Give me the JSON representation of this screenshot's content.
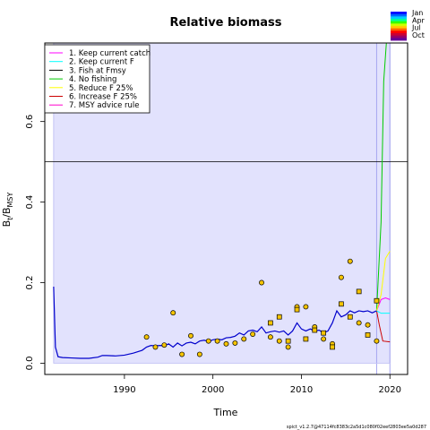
{
  "chart_data": {
    "type": "line",
    "title": "Relative biomass",
    "xlabel": "Time",
    "ylabel_main": "B",
    "ylabel_sub_t": "t",
    "ylabel_div": "/B",
    "ylabel_sub_msy": "MSY",
    "xlim": [
      1981.0,
      2022.0
    ],
    "ylim": [
      -0.028,
      0.795
    ],
    "xticks": [
      1990,
      2000,
      2010,
      2020
    ],
    "yticks": [
      0.0,
      0.2,
      0.4,
      0.6
    ],
    "ytick_labels": [
      "0.0",
      "0.2",
      "0.4",
      "0.6"
    ],
    "reference_line_y": 0.5,
    "ci_band": {
      "x": [
        1982.0,
        2020.0
      ],
      "y": [
        0.0,
        0.795
      ],
      "color": "#e2e2fd"
    },
    "forecast_start": 2018.5,
    "forecast_lines_color": "#a5a5f0",
    "legend_position": "top-left",
    "series": [
      {
        "name": "1. Keep current catch",
        "color": "#ff00ff"
      },
      {
        "name": "2. Keep current F",
        "color": "#00ffff"
      },
      {
        "name": "3. Fish at Fmsy",
        "color": "#000000"
      },
      {
        "name": "4. No fishing",
        "color": "#00cc00"
      },
      {
        "name": "5. Reduce F 25%",
        "color": "#ffff00"
      },
      {
        "name": "6. Increase F 25%",
        "color": "#cc0000"
      },
      {
        "name": "7. MSY advice rule",
        "color": "#ff00cc"
      }
    ],
    "biomass_line": {
      "color": "#0000cc",
      "x": [
        1982.0,
        1982.2,
        1982.5,
        1983.0,
        1984.0,
        1985.0,
        1986.0,
        1987.0,
        1987.5,
        1988.0,
        1989.0,
        1990.0,
        1991.0,
        1992.0,
        1992.5,
        1993.0,
        1993.5,
        1994.0,
        1994.5,
        1995.0,
        1995.5,
        1996.0,
        1996.5,
        1997.0,
        1997.5,
        1998.0,
        1998.5,
        1999.0,
        1999.5,
        2000.0,
        2000.5,
        2001.0,
        2001.5,
        2002.0,
        2002.5,
        2003.0,
        2003.5,
        2004.0,
        2004.5,
        2005.0,
        2005.5,
        2006.0,
        2006.5,
        2007.0,
        2007.5,
        2008.0,
        2008.5,
        2009.0,
        2009.5,
        2010.0,
        2010.5,
        2011.0,
        2011.5,
        2012.0,
        2012.5,
        2013.0,
        2013.5,
        2014.0,
        2014.5,
        2015.0,
        2015.5,
        2016.0,
        2016.5,
        2017.0,
        2017.5,
        2018.0,
        2018.5
      ],
      "y": [
        0.19,
        0.04,
        0.016,
        0.014,
        0.013,
        0.012,
        0.012,
        0.015,
        0.019,
        0.019,
        0.018,
        0.02,
        0.025,
        0.032,
        0.04,
        0.044,
        0.043,
        0.044,
        0.043,
        0.048,
        0.04,
        0.05,
        0.043,
        0.05,
        0.052,
        0.048,
        0.055,
        0.057,
        0.054,
        0.058,
        0.06,
        0.058,
        0.063,
        0.064,
        0.067,
        0.075,
        0.07,
        0.08,
        0.082,
        0.078,
        0.09,
        0.075,
        0.078,
        0.08,
        0.077,
        0.08,
        0.07,
        0.08,
        0.1,
        0.085,
        0.08,
        0.085,
        0.08,
        0.082,
        0.075,
        0.08,
        0.1,
        0.13,
        0.115,
        0.12,
        0.13,
        0.125,
        0.13,
        0.128,
        0.13,
        0.125,
        0.13
      ]
    },
    "catch_obs": {
      "color": "#f5c400",
      "circles": [
        {
          "x": 1992.5,
          "y": 0.065
        },
        {
          "x": 1993.5,
          "y": 0.04
        },
        {
          "x": 1994.5,
          "y": 0.045
        },
        {
          "x": 1995.5,
          "y": 0.125
        },
        {
          "x": 1996.5,
          "y": 0.022
        },
        {
          "x": 1997.5,
          "y": 0.068
        },
        {
          "x": 1998.5,
          "y": 0.022
        },
        {
          "x": 1999.5,
          "y": 0.055
        },
        {
          "x": 2000.5,
          "y": 0.055
        },
        {
          "x": 2001.5,
          "y": 0.048
        },
        {
          "x": 2002.5,
          "y": 0.05
        },
        {
          "x": 2003.5,
          "y": 0.06
        },
        {
          "x": 2004.5,
          "y": 0.072
        },
        {
          "x": 2005.5,
          "y": 0.2
        },
        {
          "x": 2006.5,
          "y": 0.065
        },
        {
          "x": 2007.5,
          "y": 0.055
        },
        {
          "x": 2008.5,
          "y": 0.04
        },
        {
          "x": 2009.5,
          "y": 0.14
        },
        {
          "x": 2010.5,
          "y": 0.14
        },
        {
          "x": 2011.5,
          "y": 0.09
        },
        {
          "x": 2012.5,
          "y": 0.06
        },
        {
          "x": 2013.5,
          "y": 0.048
        },
        {
          "x": 2014.5,
          "y": 0.213
        },
        {
          "x": 2015.5,
          "y": 0.253
        },
        {
          "x": 2016.5,
          "y": 0.1
        },
        {
          "x": 2017.5,
          "y": 0.095
        },
        {
          "x": 2018.5,
          "y": 0.055
        }
      ],
      "squares": [
        {
          "x": 2006.5,
          "y": 0.1
        },
        {
          "x": 2007.5,
          "y": 0.115
        },
        {
          "x": 2008.5,
          "y": 0.055
        },
        {
          "x": 2009.5,
          "y": 0.133
        },
        {
          "x": 2010.5,
          "y": 0.06
        },
        {
          "x": 2011.5,
          "y": 0.082
        },
        {
          "x": 2012.5,
          "y": 0.075
        },
        {
          "x": 2013.5,
          "y": 0.04
        },
        {
          "x": 2014.5,
          "y": 0.147
        },
        {
          "x": 2015.5,
          "y": 0.115
        },
        {
          "x": 2016.5,
          "y": 0.178
        },
        {
          "x": 2017.5,
          "y": 0.07
        },
        {
          "x": 2018.5,
          "y": 0.155
        }
      ]
    },
    "forecast_curves": [
      {
        "color": "#00cc00",
        "x": [
          2018.5,
          2019.0,
          2019.3,
          2019.6
        ],
        "y": [
          0.13,
          0.35,
          0.7,
          0.795
        ]
      },
      {
        "color": "#cc0000",
        "x": [
          2018.5,
          2018.8,
          2019.2,
          2020.0
        ],
        "y": [
          0.13,
          0.095,
          0.055,
          0.053
        ]
      },
      {
        "color": "#ff00ff",
        "x": [
          2018.5,
          2019.0,
          2019.5,
          2020.0
        ],
        "y": [
          0.13,
          0.158,
          0.162,
          0.158
        ]
      },
      {
        "color": "#00ffff",
        "x": [
          2018.5,
          2019.0,
          2020.0
        ],
        "y": [
          0.13,
          0.124,
          0.124
        ]
      },
      {
        "color": "#ffff00",
        "x": [
          2018.5,
          2019.0,
          2019.5,
          2020.0
        ],
        "y": [
          0.13,
          0.17,
          0.26,
          0.278
        ]
      }
    ],
    "season_legend": {
      "labels": [
        "Jan",
        "Apr",
        "Jul",
        "Oct"
      ],
      "colors": [
        "#0000ff",
        "#0066ff",
        "#00ccff",
        "#00ff99",
        "#33ff00",
        "#ccff00",
        "#ffcc00",
        "#ff6600",
        "#ff0000",
        "#cc0033",
        "#990066",
        "#660099"
      ]
    }
  },
  "footer": "spict_v1.2.7@47114fc8383c2a5d1c080f02eef2803ee5a0d287"
}
